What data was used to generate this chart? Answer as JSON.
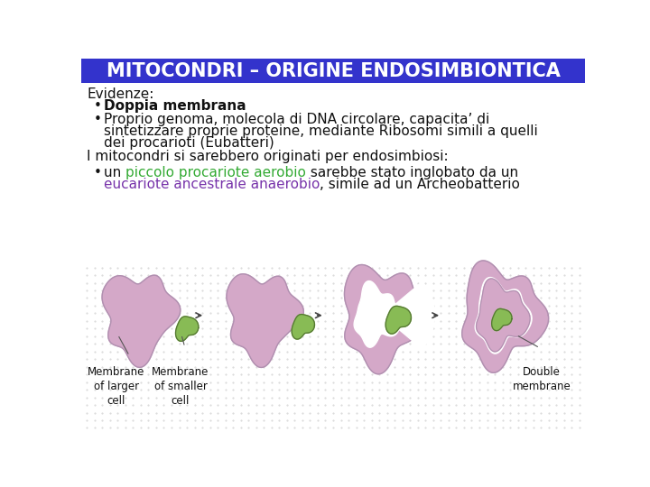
{
  "title": "MITOCONDRI – ORIGINE ENDOSIMBIONTICA",
  "title_bg": "#3333cc",
  "title_fg": "#ffffff",
  "bg_color": "#ffffff",
  "body_text_color": "#111111",
  "green_color": "#33aa33",
  "purple_color": "#7733aa",
  "evidenze_label": "Evidenze:",
  "bullet1_bold": "Doppia membrana",
  "bullet2_line1": "Proprio genoma, molecola di DNA circolare, capacita’ di",
  "bullet2_line2": "sintetizzare proprie proteine, mediante Ribosomi simili a quelli",
  "bullet2_line3": "dei procarioti (Eubatteri)",
  "intro_line": "I mitocondri si sarebbero originati per endosimbiosi:",
  "diagram_label1": "Membrane\nof larger\ncell",
  "diagram_label2": "Membrane\nof smaller\ncell",
  "diagram_label3": "Double\nmembrane",
  "large_cell_color": "#d4a8c8",
  "large_cell_edge": "#b090b0",
  "small_cell_color": "#88bb55",
  "small_cell_edge": "#557733",
  "arrow_color": "#444444",
  "dot_color": "#cccccc",
  "line_color": "#555555"
}
